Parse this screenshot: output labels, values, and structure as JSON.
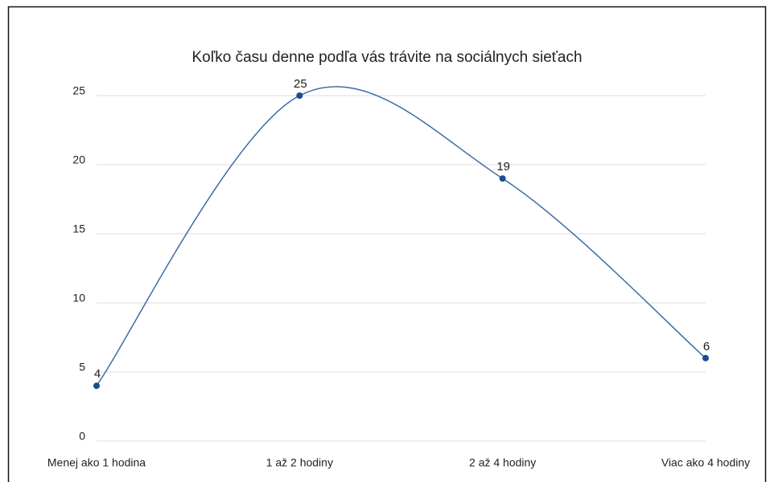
{
  "chart_data": {
    "type": "line",
    "title": "Koľko času denne podľa vás trávite na sociálnych sieťach",
    "categories": [
      "Menej ako 1 hodina",
      "1 až 2 hodiny",
      "2 až 4 hodiny",
      "Viac ako 4 hodiny"
    ],
    "values": [
      4,
      25,
      19,
      6
    ],
    "color": "#3d6ba6",
    "ylim": [
      0,
      25
    ],
    "yticks": [
      0,
      5,
      10,
      15,
      20,
      25
    ],
    "grid": true,
    "smooth": true
  }
}
